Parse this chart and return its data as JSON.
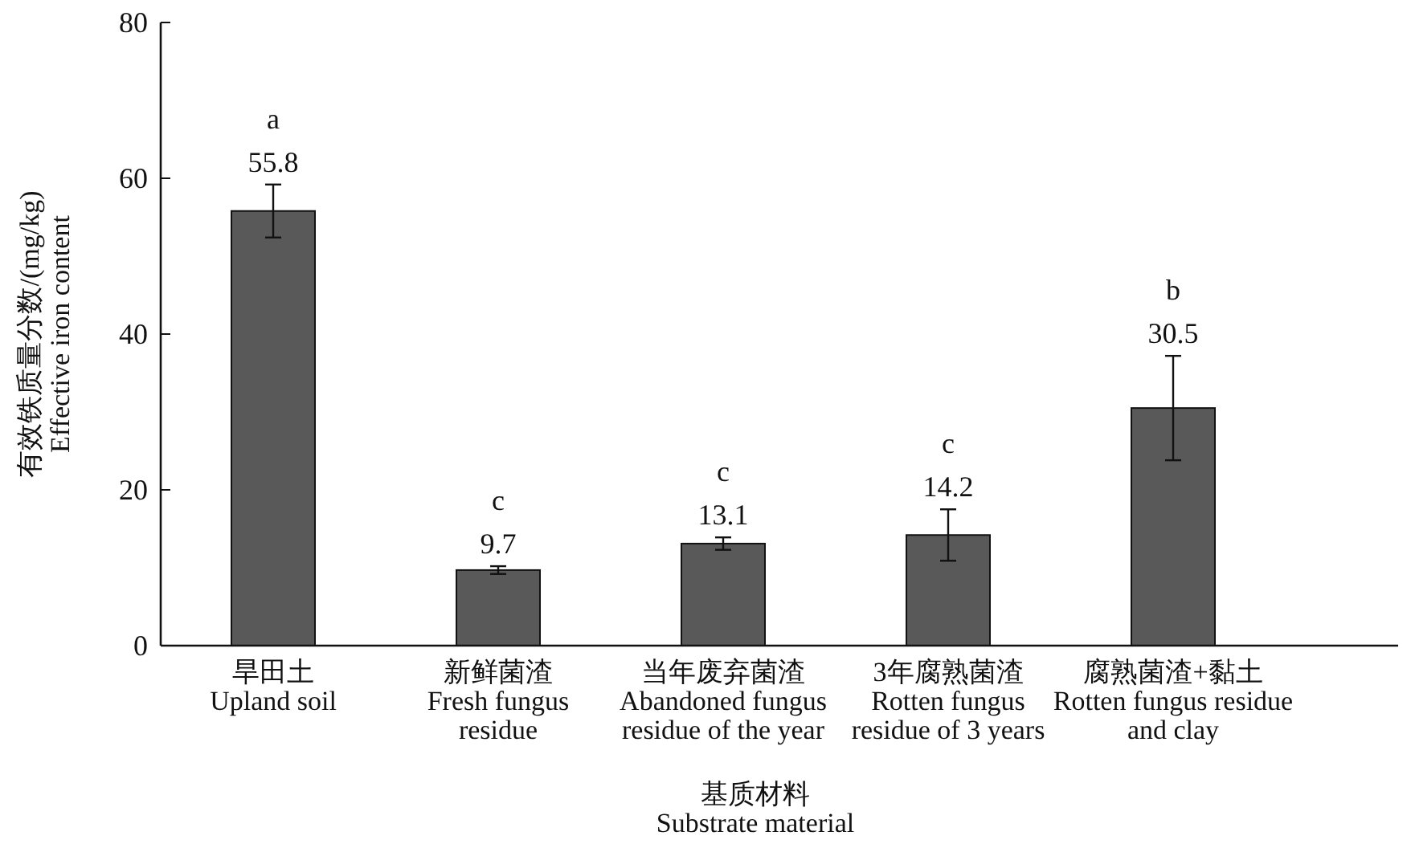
{
  "chart_data": {
    "type": "bar",
    "ylabel": "有效铁质量分数/(mg/kg)\nEffective iron content",
    "xlabel": "基质材料\nSubstrate material",
    "categories": [
      "旱田土\nUpland soil",
      "新鲜菌渣\nFresh fungus\nresidue",
      "当年废弃菌渣\nAbandoned fungus\nresidue of the year",
      "3年腐熟菌渣\nRotten fungus\nresidue of 3 years",
      "腐熟菌渣+黏土\nRotten fungus residue\nand clay"
    ],
    "values": [
      55.8,
      9.7,
      13.1,
      14.2,
      30.5
    ],
    "errors": [
      3.4,
      0.5,
      0.8,
      3.3,
      6.7
    ],
    "color": "#595959",
    "data_labels": true,
    "ylim": [
      0,
      80
    ],
    "yticks": [
      0,
      20,
      40,
      60,
      80
    ],
    "grid": false,
    "annotations": [
      "a",
      "c",
      "c",
      "c",
      "b"
    ]
  }
}
